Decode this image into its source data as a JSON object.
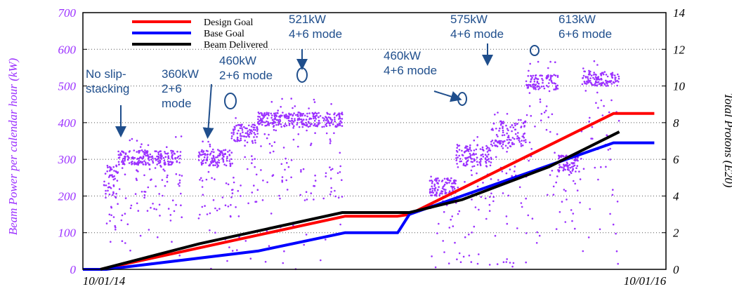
{
  "chart_data": {
    "type": "scatter",
    "x_axis": {
      "tick_labels": [
        "10/01/14",
        "10/01/16"
      ]
    },
    "y_left": {
      "label": "Beam Power per calendar hour (kW)",
      "range": [
        0,
        700
      ],
      "ticks": [
        "0",
        "100",
        "200",
        "300",
        "400",
        "500",
        "600",
        "700"
      ],
      "color": "#9b30ff"
    },
    "y_right": {
      "label": "Total Protons (E20)",
      "range": [
        0,
        14
      ],
      "ticks": [
        "0",
        "2",
        "4",
        "6",
        "8",
        "10",
        "12",
        "14"
      ]
    },
    "grid": "horizontal dotted",
    "legend": {
      "placement": "top-left",
      "entries": [
        {
          "name": "Design Goal",
          "color": "#ff0000"
        },
        {
          "name": "Base Goal",
          "color": "#0000ff"
        },
        {
          "name": "Beam Delivered",
          "color": "#000000"
        }
      ]
    },
    "power_segments": [
      {
        "start": 0.036,
        "end": 0.06,
        "level": 240,
        "spread": 45
      },
      {
        "start": 0.06,
        "end": 0.17,
        "level": 305,
        "spread": 20
      },
      {
        "start": 0.198,
        "end": 0.255,
        "level": 305,
        "spread": 22
      },
      {
        "start": 0.255,
        "end": 0.3,
        "level": 370,
        "spread": 25
      },
      {
        "start": 0.3,
        "end": 0.445,
        "level": 408,
        "spread": 20
      },
      {
        "start": 0.595,
        "end": 0.64,
        "level": 225,
        "spread": 25
      },
      {
        "start": 0.64,
        "end": 0.7,
        "level": 310,
        "spread": 30
      },
      {
        "start": 0.7,
        "end": 0.76,
        "level": 370,
        "spread": 35
      },
      {
        "start": 0.76,
        "end": 0.815,
        "level": 510,
        "spread": 20
      },
      {
        "start": 0.815,
        "end": 0.855,
        "level": 290,
        "spread": 25
      },
      {
        "start": 0.855,
        "end": 0.92,
        "level": 520,
        "spread": 20
      }
    ],
    "series": [
      {
        "name": "Design Goal",
        "color": "#ff0000",
        "x": [
          0,
          0.03,
          0.45,
          0.455,
          0.54,
          0.56,
          0.91,
          0.98
        ],
        "y": [
          0,
          0,
          2.9,
          2.9,
          2.9,
          3.0,
          8.5,
          8.5
        ]
      },
      {
        "name": "Base Goal",
        "color": "#0000ff",
        "x": [
          0,
          0.04,
          0.3,
          0.45,
          0.455,
          0.54,
          0.56,
          0.91,
          0.98
        ],
        "y": [
          0,
          0,
          1.0,
          2.0,
          2.0,
          2.0,
          3.0,
          6.9,
          6.9
        ]
      },
      {
        "name": "Beam Delivered",
        "color": "#000000",
        "x": [
          0.03,
          0.2,
          0.445,
          0.56,
          0.65,
          0.8,
          0.92
        ],
        "y": [
          0,
          1.4,
          3.1,
          3.1,
          3.8,
          5.6,
          7.5
        ]
      }
    ],
    "annotations": [
      {
        "lines": [
          "No slip-",
          "stacking"
        ],
        "marker": "arrow"
      },
      {
        "lines": [
          "360kW",
          "2+6",
          "mode"
        ],
        "marker": "arrow"
      },
      {
        "lines": [
          "460kW",
          "2+6 mode"
        ],
        "marker": "circle"
      },
      {
        "lines": [
          "521kW",
          "4+6 mode"
        ],
        "marker": "arrow+circle"
      },
      {
        "lines": [
          "460kW",
          "4+6 mode"
        ],
        "marker": "arrow+circle"
      },
      {
        "lines": [
          "575kW",
          "4+6 mode"
        ],
        "marker": "arrow"
      },
      {
        "lines": [
          "613kW",
          "6+6 mode"
        ],
        "marker": "circle"
      }
    ]
  }
}
